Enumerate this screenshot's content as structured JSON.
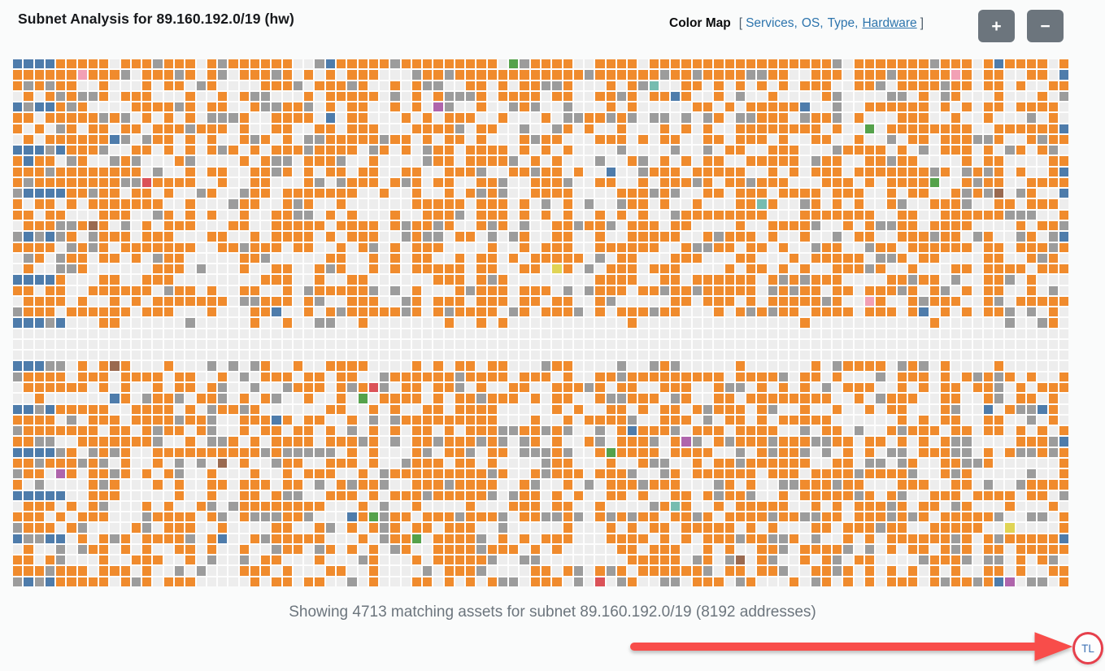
{
  "header": {
    "title": "Subnet Analysis for 89.160.192.0/19 (hw)",
    "color_map": {
      "label": "Color Map",
      "open_bracket": "[",
      "close_bracket": "]",
      "comma": ",",
      "options": [
        "Services",
        "OS",
        "Type",
        "Hardware"
      ],
      "active_option": "Hardware"
    },
    "zoom_in_label": "+",
    "zoom_out_label": "−"
  },
  "grid": {
    "cols": 98,
    "rows": 49,
    "seed": 1337,
    "cell_colors": {
      "orange": "#f08b2d",
      "gray": "#9c9c9c",
      "blue": "#4e7cab",
      "empty": "#ededed"
    },
    "rare_colors": [
      "#55a24b",
      "#db5258",
      "#f2a0b5",
      "#af65ac",
      "#e0d455",
      "#9a6a50",
      "#76bcb0"
    ],
    "gap_rows": [
      25,
      26,
      27
    ],
    "row_density_overrides": {
      "0": 1.6,
      "1": 1.5,
      "23": 1.25,
      "24": 0.3,
      "28": 0.7,
      "29": 1.25
    },
    "blue_run_period": 4,
    "last_col_blue_prob": 0.12,
    "base_orange_prob": 0.5,
    "base_gray_prob": 0.11,
    "interior_blue_prob": 0.004,
    "rare_prob": 0.005
  },
  "footer": {
    "status": "Showing 4713 matching assets for subnet 89.160.192.0/19 (8192 addresses)"
  },
  "annotation": {
    "arrow_color": "#f84d4a",
    "badge_text": "TL",
    "badge_border_color": "#e6404c",
    "badge_text_color": "#3d72b4"
  }
}
